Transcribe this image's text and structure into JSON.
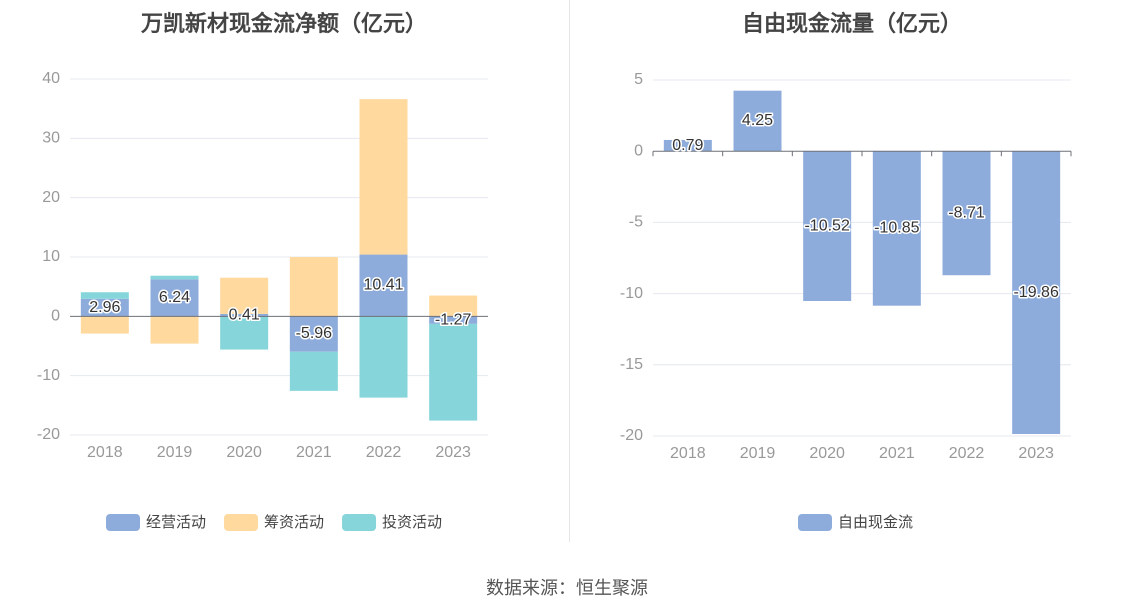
{
  "source_label": "数据来源：恒生聚源",
  "chart_data": [
    {
      "type": "bar",
      "stacked": true,
      "title": "万凯新材现金流净额（亿元）",
      "categories": [
        "2018",
        "2019",
        "2020",
        "2021",
        "2022",
        "2023"
      ],
      "series": [
        {
          "name": "经营活动",
          "color": "#8eacdb",
          "values": [
            2.96,
            6.24,
            0.41,
            -5.96,
            10.41,
            -1.27
          ]
        },
        {
          "name": "筹资活动",
          "color": "#ffd99e",
          "values": [
            -2.9,
            -4.6,
            6.1,
            10.0,
            26.2,
            3.5
          ]
        },
        {
          "name": "投资活动",
          "color": "#86d5da",
          "values": [
            1.1,
            0.6,
            -5.6,
            -6.6,
            -13.7,
            -16.3
          ]
        }
      ],
      "data_labels": [
        "2.96",
        "6.24",
        "0.41",
        "-5.96",
        "10.41",
        "-1.27"
      ],
      "yticks": [
        40,
        30,
        20,
        10,
        0,
        -10,
        -20
      ],
      "ylim": [
        -20,
        40
      ],
      "grid": true,
      "legend": "bottom"
    },
    {
      "type": "bar",
      "title": "自由现金流量（亿元）",
      "categories": [
        "2018",
        "2019",
        "2020",
        "2021",
        "2022",
        "2023"
      ],
      "series": [
        {
          "name": "自由现金流",
          "color": "#8eacdb",
          "values": [
            0.79,
            4.25,
            -10.52,
            -10.85,
            -8.71,
            -19.86
          ]
        }
      ],
      "data_labels": [
        "0.79",
        "4.25",
        "-10.52",
        "-10.85",
        "-8.71",
        "-19.86"
      ],
      "yticks": [
        5,
        0,
        -5,
        -10,
        -15,
        -20
      ],
      "ylim": [
        -20,
        5
      ],
      "grid": true,
      "legend": "bottom"
    }
  ]
}
